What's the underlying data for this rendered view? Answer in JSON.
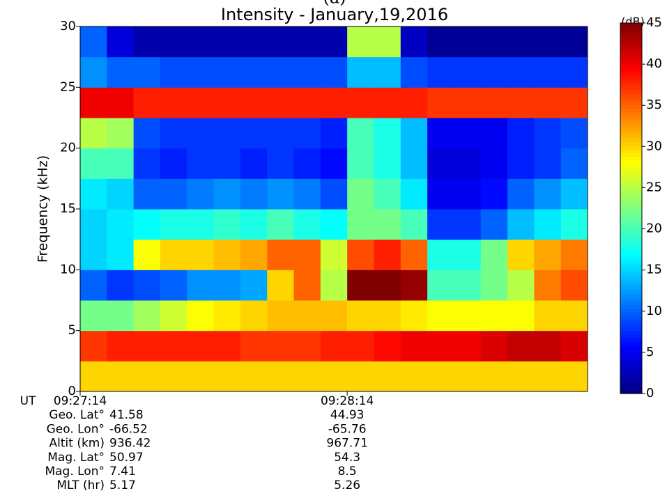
{
  "chart_data": {
    "type": "heatmap",
    "panel_label": "(a)",
    "title": "Intensity - January,19,2016",
    "ylabel": "Frequency (kHz)",
    "colorbar_label": "(dB)",
    "xlim": [
      0,
      114
    ],
    "xticks": [
      {
        "value": 0,
        "label": "09:27:14"
      },
      {
        "value": 60,
        "label": "09:28:14"
      }
    ],
    "ylim": [
      0,
      30
    ],
    "yticks": [
      0,
      5,
      10,
      15,
      20,
      25,
      30
    ],
    "zlim": [
      0,
      45
    ],
    "zticks": [
      0,
      5,
      10,
      15,
      20,
      25,
      30,
      35,
      40,
      45
    ],
    "colormap": "jet",
    "xbins": [
      0,
      6,
      12,
      18,
      24,
      30,
      36,
      42,
      48,
      54,
      60,
      66,
      72,
      78,
      84,
      90,
      96,
      102,
      108,
      114
    ],
    "ybins": [
      0,
      2.5,
      5,
      7.5,
      10,
      12.5,
      15,
      17.5,
      20,
      22.5,
      25,
      27.5,
      30
    ],
    "z": [
      [
        30,
        30,
        30,
        30,
        30,
        30,
        30,
        30,
        30,
        30,
        30,
        30,
        30,
        30,
        30,
        30,
        30,
        30,
        30
      ],
      [
        37,
        38,
        38,
        38,
        38,
        38,
        37,
        37,
        37,
        38,
        38,
        39,
        40,
        40,
        40,
        41,
        42,
        42,
        41
      ],
      [
        22,
        22,
        24,
        26,
        28,
        29,
        30,
        31,
        31,
        31,
        30,
        30,
        29,
        28,
        28,
        28,
        28,
        30,
        30
      ],
      [
        10,
        8,
        9,
        10,
        12,
        12,
        13,
        30,
        35,
        25,
        45,
        45,
        44,
        20,
        20,
        22,
        25,
        34,
        36
      ],
      [
        15,
        16,
        28,
        30,
        30,
        31,
        32,
        35,
        35,
        26,
        36,
        38,
        35,
        18,
        18,
        22,
        30,
        32,
        34
      ],
      [
        15,
        16,
        17,
        18,
        18,
        19,
        18,
        20,
        18,
        17,
        22,
        22,
        20,
        8,
        8,
        10,
        14,
        16,
        18
      ],
      [
        16,
        15,
        10,
        10,
        11,
        12,
        11,
        12,
        11,
        9,
        22,
        20,
        16,
        5,
        5,
        6,
        10,
        12,
        14
      ],
      [
        20,
        20,
        8,
        7,
        8,
        8,
        7,
        8,
        7,
        6,
        20,
        18,
        14,
        4,
        4,
        5,
        7,
        8,
        10
      ],
      [
        25,
        24,
        9,
        8,
        8,
        8,
        8,
        8,
        8,
        7,
        20,
        18,
        14,
        5,
        5,
        5,
        7,
        8,
        9
      ],
      [
        40,
        40,
        38,
        38,
        38,
        38,
        38,
        38,
        38,
        38,
        38,
        38,
        38,
        37,
        37,
        37,
        37,
        37,
        37
      ],
      [
        12,
        10,
        10,
        9,
        9,
        9,
        9,
        9,
        9,
        9,
        14,
        14,
        9,
        8,
        8,
        8,
        8,
        8,
        8
      ],
      [
        10,
        4,
        2,
        2,
        2,
        2,
        2,
        2,
        2,
        2,
        25,
        25,
        3,
        1,
        1,
        1,
        1,
        1,
        1
      ]
    ],
    "ephemeris": {
      "labels": [
        "UT",
        "Geo. Lat°",
        "Geo. Lon°",
        "Altit (km)",
        "Mag. Lat°",
        "Mag. Lon°",
        "MLT (hr)"
      ],
      "columns": [
        [
          41.58,
          -66.52,
          936.42,
          50.97,
          7.41,
          5.17
        ],
        [
          44.93,
          -65.76,
          967.71,
          54.3,
          8.5,
          5.26
        ]
      ]
    }
  }
}
